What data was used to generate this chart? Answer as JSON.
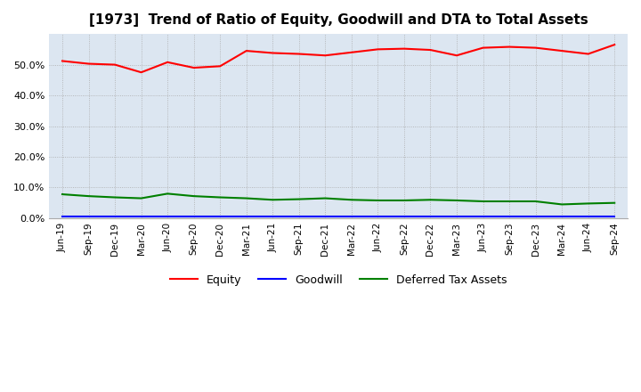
{
  "title": "[1973]  Trend of Ratio of Equity, Goodwill and DTA to Total Assets",
  "x_labels": [
    "Jun-19",
    "Sep-19",
    "Dec-19",
    "Mar-20",
    "Jun-20",
    "Sep-20",
    "Dec-20",
    "Mar-21",
    "Jun-21",
    "Sep-21",
    "Dec-21",
    "Mar-22",
    "Jun-22",
    "Sep-22",
    "Dec-22",
    "Mar-23",
    "Jun-23",
    "Sep-23",
    "Dec-23",
    "Mar-24",
    "Jun-24",
    "Sep-24"
  ],
  "equity": [
    51.2,
    50.3,
    50.0,
    47.5,
    50.8,
    49.0,
    49.5,
    54.5,
    53.8,
    53.5,
    53.0,
    54.0,
    55.0,
    55.2,
    54.8,
    53.0,
    55.5,
    55.8,
    55.5,
    54.5,
    53.5,
    56.5
  ],
  "goodwill": [
    0.5,
    0.5,
    0.5,
    0.5,
    0.5,
    0.5,
    0.5,
    0.5,
    0.5,
    0.5,
    0.5,
    0.5,
    0.5,
    0.5,
    0.5,
    0.5,
    0.5,
    0.5,
    0.5,
    0.5,
    0.5,
    0.5
  ],
  "dta": [
    7.8,
    7.2,
    6.8,
    6.5,
    8.0,
    7.2,
    6.8,
    6.5,
    6.0,
    6.2,
    6.5,
    6.0,
    5.8,
    5.8,
    6.0,
    5.8,
    5.5,
    5.5,
    5.5,
    4.5,
    4.8,
    5.0
  ],
  "equity_color": "#ff0000",
  "goodwill_color": "#0000ff",
  "dta_color": "#008000",
  "ylim": [
    0,
    60
  ],
  "yticks": [
    0.0,
    10.0,
    20.0,
    30.0,
    40.0,
    50.0
  ],
  "background_color": "#dce6f1",
  "plot_bg_color": "#dce6f1",
  "grid_color": "#aaaaaa",
  "title_fontsize": 11
}
